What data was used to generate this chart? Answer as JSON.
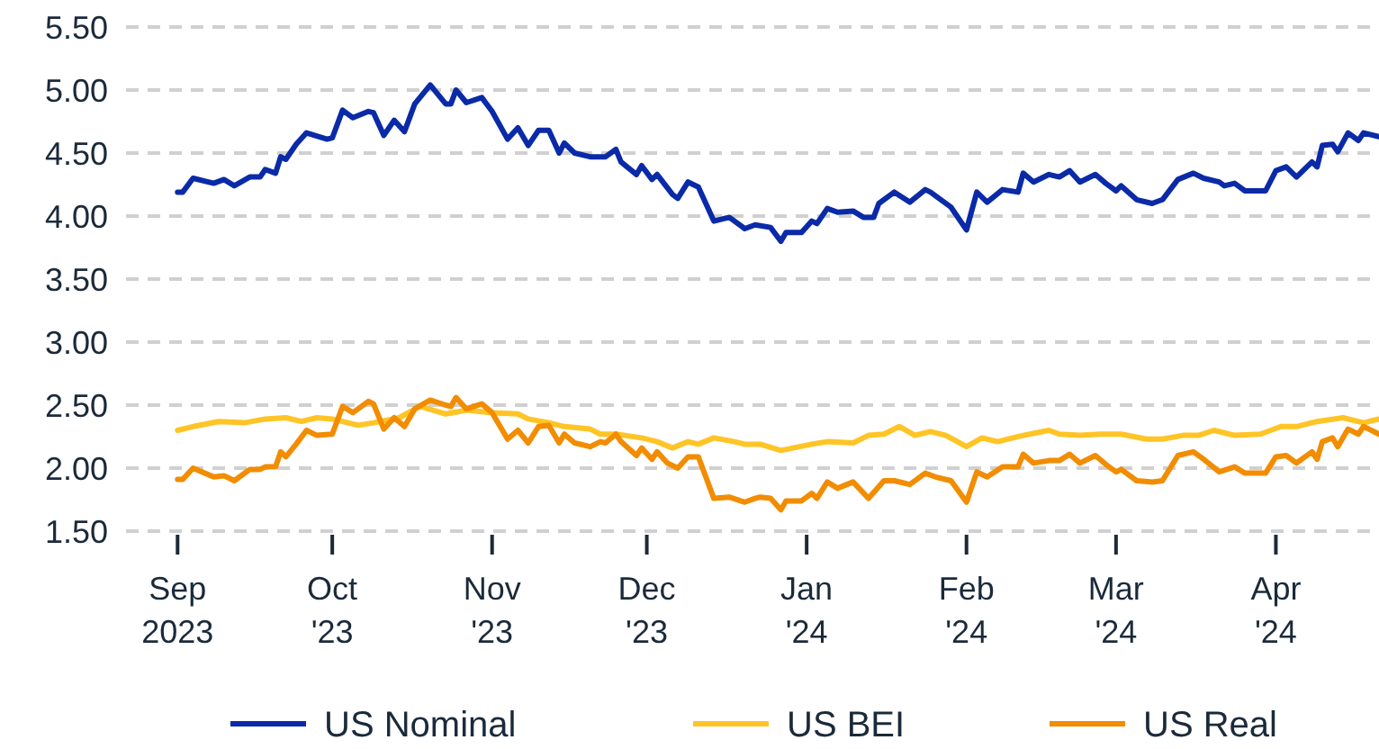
{
  "chart_data": {
    "type": "line",
    "ylim": [
      1.5,
      5.5
    ],
    "yticks": [
      {
        "value": 1.5,
        "label": "1.50"
      },
      {
        "value": 2,
        "label": "2.00"
      },
      {
        "value": 2.5,
        "label": "2.50"
      },
      {
        "value": 3,
        "label": "3.00"
      },
      {
        "value": 3.5,
        "label": "3.50"
      },
      {
        "value": 4,
        "label": "4.00"
      },
      {
        "value": 4.5,
        "label": "4.50"
      },
      {
        "value": 5,
        "label": "5.00"
      },
      {
        "value": 5.5,
        "label": "5.50"
      }
    ],
    "xlim": [
      "2023-08-22",
      "2024-04-21"
    ],
    "xticks": [
      {
        "value": "2023-09-01",
        "label": "Sep\n2023"
      },
      {
        "value": "2023-10-01",
        "label": "Oct\n'23"
      },
      {
        "value": "2023-11-01",
        "label": "Nov\n'23"
      },
      {
        "value": "2023-12-01",
        "label": "Dec\n'23"
      },
      {
        "value": "2024-01-01",
        "label": "Jan\n'24"
      },
      {
        "value": "2024-02-01",
        "label": "Feb\n'24"
      },
      {
        "value": "2024-03-01",
        "label": "Mar\n'24"
      },
      {
        "value": "2024-04-01",
        "label": "Apr\n'24"
      }
    ],
    "grid": "y",
    "legend": "bottom",
    "series": [
      {
        "name": "US Nominal",
        "color": "#0a2aa8",
        "x": [
          "2023-09-01",
          "2023-09-02",
          "2023-09-04",
          "2023-09-08",
          "2023-09-10",
          "2023-09-12",
          "2023-09-15",
          "2023-09-17",
          "2023-09-18",
          "2023-09-20",
          "2023-09-21",
          "2023-09-22",
          "2023-09-24",
          "2023-09-26",
          "2023-09-30",
          "2023-10-01",
          "2023-10-03",
          "2023-10-05",
          "2023-10-08",
          "2023-10-09",
          "2023-10-11",
          "2023-10-13",
          "2023-10-15",
          "2023-10-17",
          "2023-10-20",
          "2023-10-23",
          "2023-10-24",
          "2023-10-25",
          "2023-10-27",
          "2023-10-30",
          "2023-11-01",
          "2023-11-04",
          "2023-11-06",
          "2023-11-08",
          "2023-11-10",
          "2023-11-12",
          "2023-11-14",
          "2023-11-15",
          "2023-11-17",
          "2023-11-20",
          "2023-11-23",
          "2023-11-25",
          "2023-11-26",
          "2023-11-29",
          "2023-11-30",
          "2023-12-02",
          "2023-12-03",
          "2023-12-06",
          "2023-12-07",
          "2023-12-09",
          "2023-12-11",
          "2023-12-14",
          "2023-12-17",
          "2023-12-20",
          "2023-12-22",
          "2023-12-25",
          "2023-12-27",
          "2023-12-28",
          "2023-12-31",
          "2024-01-02",
          "2024-01-03",
          "2024-01-05",
          "2024-01-07",
          "2024-01-10",
          "2024-01-12",
          "2024-01-14",
          "2024-01-15",
          "2024-01-18",
          "2024-01-21",
          "2024-01-24",
          "2024-01-25",
          "2024-01-29",
          "2024-02-01",
          "2024-02-03",
          "2024-02-05",
          "2024-02-08",
          "2024-02-11",
          "2024-02-12",
          "2024-02-14",
          "2024-02-17",
          "2024-02-19",
          "2024-02-21",
          "2024-02-23",
          "2024-02-26",
          "2024-02-28",
          "2024-03-01",
          "2024-03-02",
          "2024-03-05",
          "2024-03-08",
          "2024-03-10",
          "2024-03-13",
          "2024-03-16",
          "2024-03-18",
          "2024-03-21",
          "2024-03-22",
          "2024-03-24",
          "2024-03-26",
          "2024-03-30",
          "2024-04-01",
          "2024-04-03",
          "2024-04-05",
          "2024-04-08",
          "2024-04-09",
          "2024-04-10",
          "2024-04-12",
          "2024-04-13",
          "2024-04-15",
          "2024-04-17",
          "2024-04-18",
          "2024-04-21"
        ],
        "values": [
          4.19,
          4.19,
          4.3,
          4.26,
          4.29,
          4.24,
          4.31,
          4.31,
          4.37,
          4.34,
          4.47,
          4.45,
          4.57,
          4.66,
          4.61,
          4.62,
          4.84,
          4.78,
          4.83,
          4.82,
          4.64,
          4.76,
          4.67,
          4.89,
          5.04,
          4.89,
          4.89,
          5.0,
          4.9,
          4.94,
          4.83,
          4.61,
          4.7,
          4.56,
          4.68,
          4.68,
          4.5,
          4.58,
          4.5,
          4.47,
          4.47,
          4.53,
          4.43,
          4.33,
          4.4,
          4.29,
          4.33,
          4.17,
          4.14,
          4.27,
          4.23,
          3.96,
          3.99,
          3.9,
          3.93,
          3.91,
          3.8,
          3.87,
          3.87,
          3.96,
          3.94,
          4.06,
          4.03,
          4.04,
          3.99,
          3.99,
          4.1,
          4.19,
          4.11,
          4.21,
          4.19,
          4.07,
          3.89,
          4.19,
          4.11,
          4.21,
          4.19,
          4.34,
          4.27,
          4.33,
          4.31,
          4.36,
          4.27,
          4.33,
          4.26,
          4.2,
          4.24,
          4.13,
          4.1,
          4.13,
          4.29,
          4.34,
          4.3,
          4.27,
          4.24,
          4.26,
          4.2,
          4.2,
          4.36,
          4.39,
          4.31,
          4.43,
          4.39,
          4.56,
          4.57,
          4.51,
          4.66,
          4.6,
          4.66,
          4.63
        ]
      },
      {
        "name": "US BEI",
        "color": "#ffc425",
        "x": [
          "2023-09-01",
          "2023-09-04",
          "2023-09-09",
          "2023-09-14",
          "2023-09-18",
          "2023-09-22",
          "2023-09-25",
          "2023-09-28",
          "2023-10-01",
          "2023-10-06",
          "2023-10-09",
          "2023-10-14",
          "2023-10-18",
          "2023-10-23",
          "2023-10-27",
          "2023-11-01",
          "2023-11-06",
          "2023-11-08",
          "2023-11-12",
          "2023-11-15",
          "2023-11-20",
          "2023-11-22",
          "2023-11-25",
          "2023-11-30",
          "2023-12-03",
          "2023-12-06",
          "2023-12-09",
          "2023-12-11",
          "2023-12-14",
          "2023-12-18",
          "2023-12-20",
          "2023-12-23",
          "2023-12-27",
          "2024-01-02",
          "2024-01-05",
          "2024-01-10",
          "2024-01-13",
          "2024-01-16",
          "2024-01-19",
          "2024-01-22",
          "2024-01-25",
          "2024-01-28",
          "2024-02-01",
          "2024-02-04",
          "2024-02-07",
          "2024-02-10",
          "2024-02-12",
          "2024-02-17",
          "2024-02-19",
          "2024-02-23",
          "2024-02-27",
          "2024-03-02",
          "2024-03-07",
          "2024-03-10",
          "2024-03-14",
          "2024-03-17",
          "2024-03-20",
          "2024-03-24",
          "2024-03-29",
          "2024-04-02",
          "2024-04-05",
          "2024-04-09",
          "2024-04-14",
          "2024-04-18",
          "2024-04-21"
        ],
        "values": [
          2.3,
          2.33,
          2.37,
          2.36,
          2.39,
          2.4,
          2.37,
          2.4,
          2.39,
          2.34,
          2.36,
          2.4,
          2.49,
          2.43,
          2.46,
          2.44,
          2.43,
          2.39,
          2.36,
          2.33,
          2.31,
          2.27,
          2.27,
          2.24,
          2.21,
          2.16,
          2.21,
          2.19,
          2.24,
          2.21,
          2.19,
          2.19,
          2.14,
          2.19,
          2.21,
          2.2,
          2.26,
          2.27,
          2.33,
          2.26,
          2.29,
          2.26,
          2.17,
          2.24,
          2.21,
          2.24,
          2.26,
          2.3,
          2.27,
          2.26,
          2.27,
          2.27,
          2.23,
          2.23,
          2.26,
          2.26,
          2.3,
          2.26,
          2.27,
          2.33,
          2.33,
          2.37,
          2.4,
          2.36,
          2.39
        ]
      },
      {
        "name": "US Real",
        "color": "#f28c00",
        "x": [
          "2023-09-01",
          "2023-09-02",
          "2023-09-04",
          "2023-09-08",
          "2023-09-10",
          "2023-09-12",
          "2023-09-15",
          "2023-09-17",
          "2023-09-18",
          "2023-09-20",
          "2023-09-21",
          "2023-09-22",
          "2023-09-24",
          "2023-09-26",
          "2023-09-28",
          "2023-10-01",
          "2023-10-03",
          "2023-10-05",
          "2023-10-08",
          "2023-10-09",
          "2023-10-11",
          "2023-10-13",
          "2023-10-15",
          "2023-10-17",
          "2023-10-20",
          "2023-10-23",
          "2023-10-24",
          "2023-10-25",
          "2023-10-27",
          "2023-10-30",
          "2023-11-01",
          "2023-11-04",
          "2023-11-06",
          "2023-11-08",
          "2023-11-10",
          "2023-11-12",
          "2023-11-14",
          "2023-11-15",
          "2023-11-17",
          "2023-11-20",
          "2023-11-22",
          "2023-11-23",
          "2023-11-25",
          "2023-11-26",
          "2023-11-29",
          "2023-11-30",
          "2023-12-02",
          "2023-12-03",
          "2023-12-05",
          "2023-12-07",
          "2023-12-09",
          "2023-12-11",
          "2023-12-14",
          "2023-12-17",
          "2023-12-20",
          "2023-12-22",
          "2023-12-23",
          "2023-12-25",
          "2023-12-27",
          "2023-12-28",
          "2023-12-31",
          "2024-01-02",
          "2024-01-03",
          "2024-01-05",
          "2024-01-07",
          "2024-01-10",
          "2024-01-13",
          "2024-01-16",
          "2024-01-18",
          "2024-01-21",
          "2024-01-24",
          "2024-01-26",
          "2024-01-29",
          "2024-02-01",
          "2024-02-03",
          "2024-02-05",
          "2024-02-08",
          "2024-02-11",
          "2024-02-12",
          "2024-02-14",
          "2024-02-17",
          "2024-02-19",
          "2024-02-21",
          "2024-02-23",
          "2024-02-26",
          "2024-02-28",
          "2024-03-01",
          "2024-03-02",
          "2024-03-05",
          "2024-03-08",
          "2024-03-10",
          "2024-03-13",
          "2024-03-16",
          "2024-03-18",
          "2024-03-21",
          "2024-03-24",
          "2024-03-26",
          "2024-03-30",
          "2024-04-01",
          "2024-04-03",
          "2024-04-05",
          "2024-04-08",
          "2024-04-09",
          "2024-04-10",
          "2024-04-12",
          "2024-04-13",
          "2024-04-15",
          "2024-04-17",
          "2024-04-18",
          "2024-04-21"
        ],
        "values": [
          1.91,
          1.91,
          2.0,
          1.93,
          1.94,
          1.9,
          1.99,
          1.99,
          2.01,
          2.01,
          2.13,
          2.09,
          2.19,
          2.3,
          2.26,
          2.27,
          2.49,
          2.44,
          2.53,
          2.51,
          2.31,
          2.4,
          2.33,
          2.47,
          2.54,
          2.5,
          2.49,
          2.56,
          2.47,
          2.51,
          2.44,
          2.23,
          2.3,
          2.2,
          2.33,
          2.34,
          2.2,
          2.27,
          2.2,
          2.17,
          2.21,
          2.2,
          2.27,
          2.21,
          2.1,
          2.16,
          2.07,
          2.13,
          2.04,
          2.0,
          2.09,
          2.09,
          1.76,
          1.77,
          1.73,
          1.76,
          1.77,
          1.76,
          1.67,
          1.74,
          1.74,
          1.8,
          1.76,
          1.89,
          1.84,
          1.89,
          1.76,
          1.9,
          1.9,
          1.87,
          1.96,
          1.93,
          1.9,
          1.73,
          1.97,
          1.93,
          2.01,
          2.01,
          2.11,
          2.04,
          2.06,
          2.06,
          2.11,
          2.04,
          2.1,
          2.03,
          1.97,
          1.99,
          1.9,
          1.89,
          1.9,
          2.1,
          2.13,
          2.07,
          1.97,
          2.01,
          1.96,
          1.96,
          2.09,
          2.1,
          2.04,
          2.13,
          2.07,
          2.21,
          2.24,
          2.17,
          2.31,
          2.27,
          2.33,
          2.27
        ]
      }
    ]
  }
}
